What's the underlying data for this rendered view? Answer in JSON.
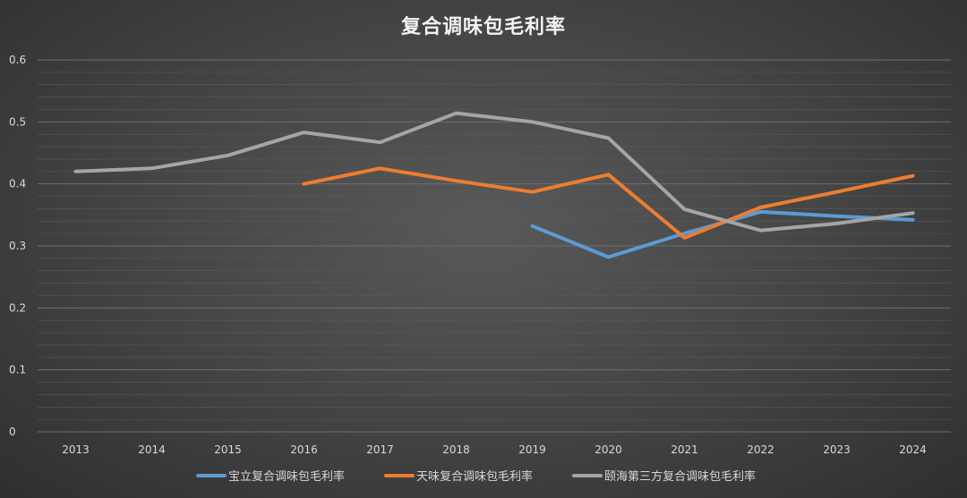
{
  "chart_data": {
    "type": "line",
    "title": "复合调味包毛利率",
    "categories": [
      "2013",
      "2014",
      "2015",
      "2016",
      "2017",
      "2018",
      "2019",
      "2020",
      "2021",
      "2022",
      "2023",
      "2024"
    ],
    "ylim": [
      0,
      0.6
    ],
    "yticks": [
      "0",
      "0.1",
      "0.2",
      "0.3",
      "0.4",
      "0.5",
      "0.6"
    ],
    "grid": true,
    "legend_position": "bottom",
    "series": [
      {
        "name": "宝立复合调味包毛利率",
        "color": "#5b9bd5",
        "values": [
          null,
          null,
          null,
          null,
          null,
          null,
          0.332,
          0.282,
          0.32,
          0.355,
          0.348,
          0.342
        ]
      },
      {
        "name": "天味复合调味包毛利率",
        "color": "#ed7d31",
        "values": [
          null,
          null,
          null,
          0.4,
          0.425,
          0.405,
          0.387,
          0.415,
          0.313,
          0.362,
          0.387,
          0.413
        ]
      },
      {
        "name": "颐海第三方复合调味包毛利率",
        "color": "#a5a5a5",
        "values": [
          0.42,
          0.425,
          0.446,
          0.483,
          0.467,
          0.514,
          0.5,
          0.474,
          0.359,
          0.325,
          0.336,
          0.353
        ]
      }
    ]
  }
}
